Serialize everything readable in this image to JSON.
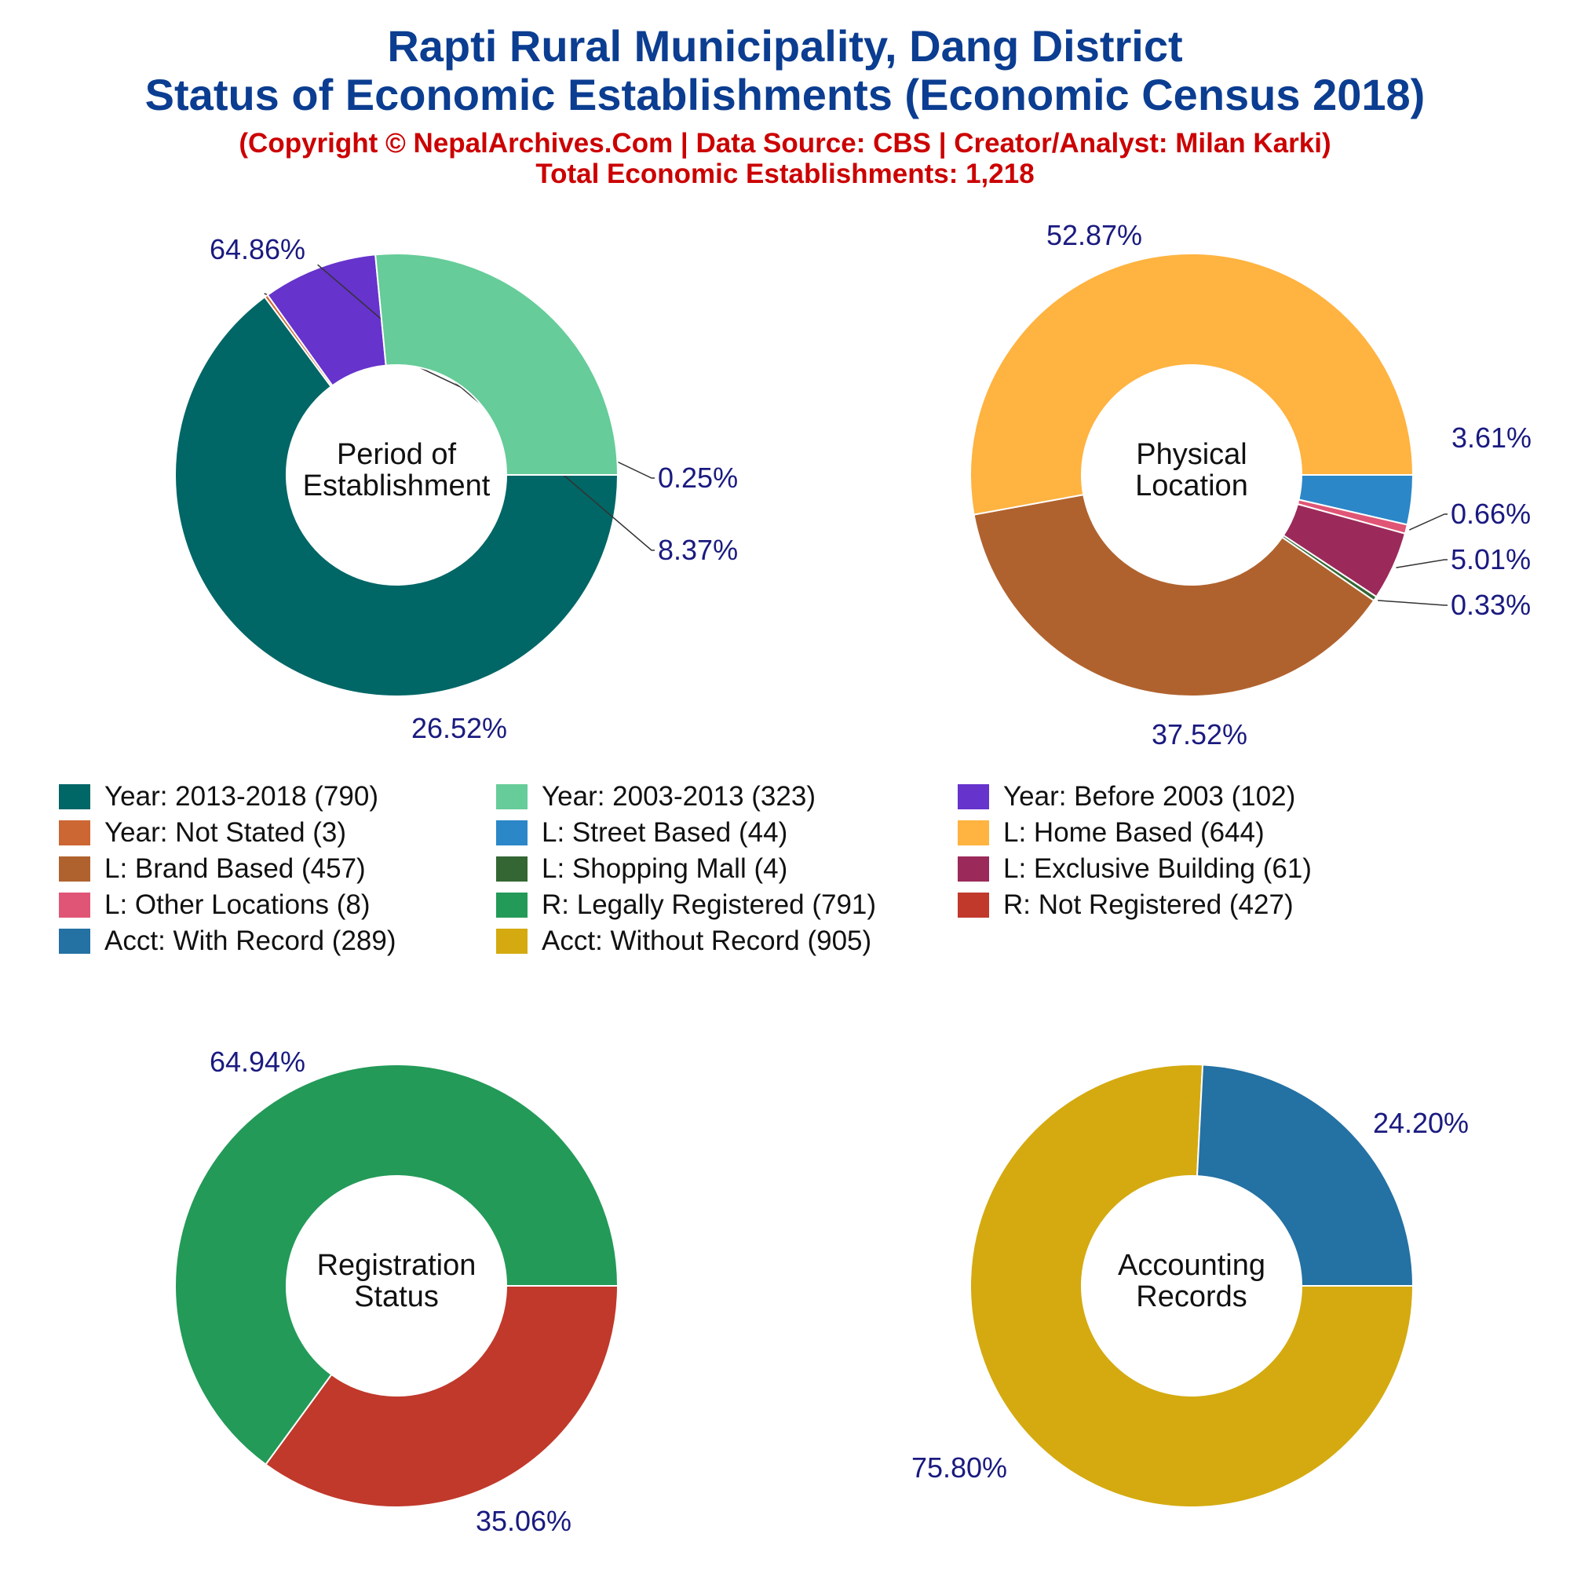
{
  "title": {
    "line1": "Rapti Rural Municipality, Dang District",
    "line2": "Status of Economic Establishments (Economic Census 2018)",
    "copyright": "(Copyright © NepalArchives.Com | Data Source: CBS | Creator/Analyst: Milan Karki)",
    "total": "Total Economic Establishments: 1,218"
  },
  "chart_data": [
    {
      "type": "pie",
      "center_label": [
        "Period of",
        "Establishment"
      ],
      "slices": [
        {
          "label": "Year: 2013-2018",
          "value": 790,
          "percent_label": "64.86%",
          "color": "#006666"
        },
        {
          "label": "Year: Not Stated",
          "value": 3,
          "percent_label": "0.25%",
          "color": "#cc6633"
        },
        {
          "label": "Year: Before 2003",
          "value": 102,
          "percent_label": "8.37%",
          "color": "#6633cc"
        },
        {
          "label": "Year: 2003-2013",
          "value": 323,
          "percent_label": "26.52%",
          "color": "#66cc99"
        }
      ]
    },
    {
      "type": "pie",
      "center_label": [
        "Physical",
        "Location"
      ],
      "slices": [
        {
          "label": "L: Street Based",
          "value": 44,
          "percent_label": "3.61%",
          "color": "#2b87c8"
        },
        {
          "label": "L: Other Locations",
          "value": 8,
          "percent_label": "0.66%",
          "color": "#e05575"
        },
        {
          "label": "L: Exclusive Building",
          "value": 61,
          "percent_label": "5.01%",
          "color": "#9b2a5a"
        },
        {
          "label": "L: Shopping Mall",
          "value": 4,
          "percent_label": "0.33%",
          "color": "#336633"
        },
        {
          "label": "L: Brand Based",
          "value": 457,
          "percent_label": "37.52%",
          "color": "#b0622e"
        },
        {
          "label": "L: Home Based",
          "value": 644,
          "percent_label": "52.87%",
          "color": "#ffb340"
        }
      ]
    },
    {
      "type": "pie",
      "center_label": [
        "Registration",
        "Status"
      ],
      "slices": [
        {
          "label": "R: Not Registered",
          "value": 427,
          "percent_label": "35.06%",
          "color": "#c0392b"
        },
        {
          "label": "R: Legally Registered",
          "value": 791,
          "percent_label": "64.94%",
          "color": "#239a58"
        }
      ]
    },
    {
      "type": "pie",
      "center_label": [
        "Accounting",
        "Records"
      ],
      "slices": [
        {
          "label": "Acct: Without Record",
          "value": 905,
          "percent_label": "75.80%",
          "color": "#d4aa10"
        },
        {
          "label": "Acct: With Record",
          "value": 289,
          "percent_label": "24.20%",
          "color": "#2471a3"
        }
      ]
    }
  ],
  "legend": [
    {
      "label": "Year: 2013-2018 (790)",
      "color": "#006666"
    },
    {
      "label": "Year: 2003-2013 (323)",
      "color": "#66cc99"
    },
    {
      "label": "Year: Before 2003 (102)",
      "color": "#6633cc"
    },
    {
      "label": "Year: Not Stated (3)",
      "color": "#cc6633"
    },
    {
      "label": "L: Street Based (44)",
      "color": "#2b87c8"
    },
    {
      "label": "L: Home Based (644)",
      "color": "#ffb340"
    },
    {
      "label": "L: Brand Based (457)",
      "color": "#b0622e"
    },
    {
      "label": "L: Shopping Mall (4)",
      "color": "#336633"
    },
    {
      "label": "L: Exclusive Building (61)",
      "color": "#9b2a5a"
    },
    {
      "label": "L: Other Locations (8)",
      "color": "#e05575"
    },
    {
      "label": "R: Legally Registered (791)",
      "color": "#239a58"
    },
    {
      "label": "R: Not Registered (427)",
      "color": "#c0392b"
    },
    {
      "label": "Acct: With Record (289)",
      "color": "#2471a3"
    },
    {
      "label": "Acct: Without Record (905)",
      "color": "#d4aa10"
    }
  ]
}
